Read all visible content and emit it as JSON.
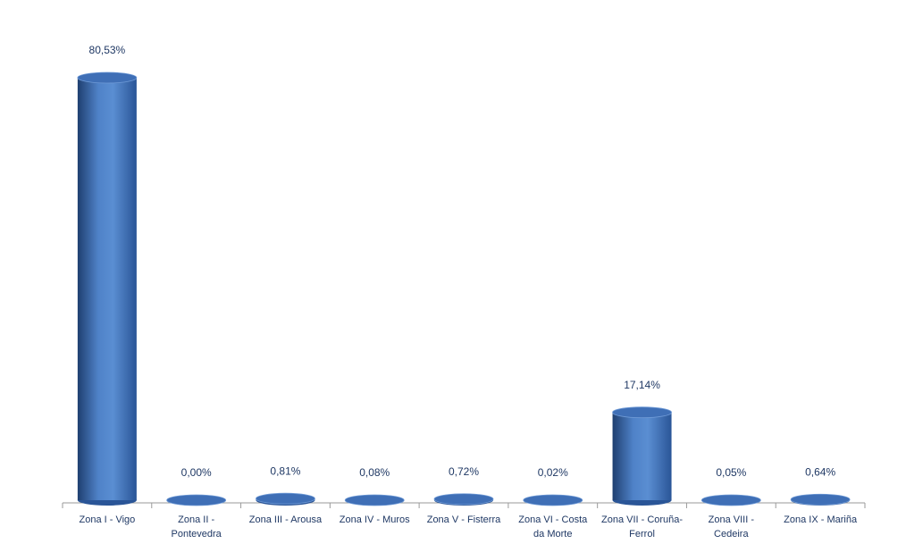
{
  "chart_data": {
    "type": "bar",
    "categories": [
      "Zona I - Vigo",
      "Zona II - Pontevedra",
      "Zona III - Arousa",
      "Zona IV - Muros",
      "Zona V - Fisterra",
      "Zona VI - Costa da Morte",
      "Zona VII - Coruña-Ferrol",
      "Zona VIII - Cedeira",
      "Zona IX - Mariña"
    ],
    "values": [
      80.53,
      0.0,
      0.81,
      0.08,
      0.72,
      0.02,
      17.14,
      0.05,
      0.64
    ],
    "value_labels": [
      "80,53%",
      "0,00%",
      "0,81%",
      "0,08%",
      "0,72%",
      "0,02%",
      "17,14%",
      "0,05%",
      "0,64%"
    ],
    "color": "#3f6fb6"
  }
}
